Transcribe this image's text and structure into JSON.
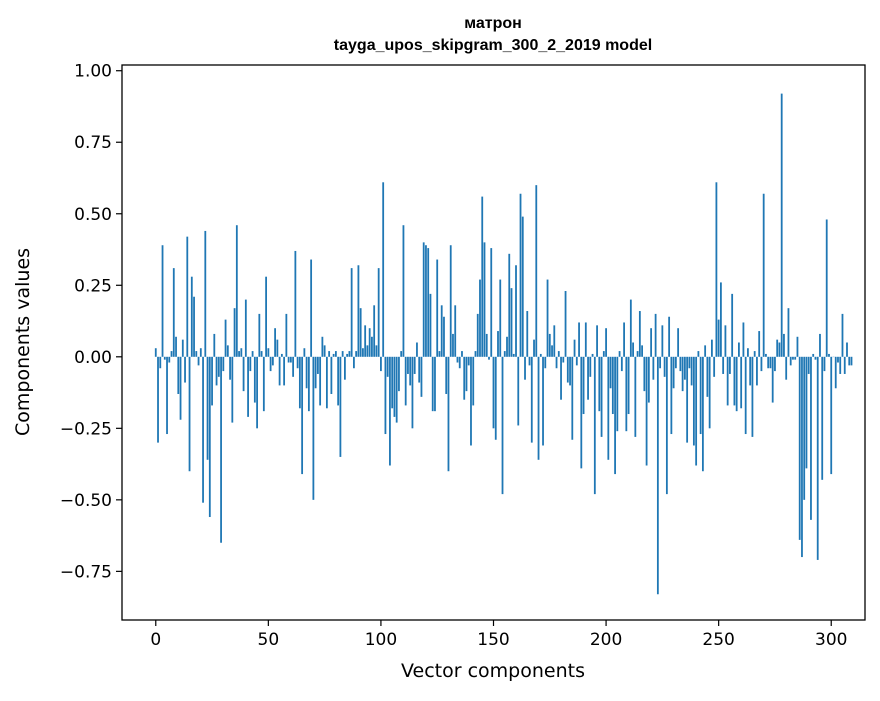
{
  "chart_data": {
    "type": "bar",
    "title": "матрон",
    "subtitle": "tayga_upos_skipgram_300_2_2019 model",
    "xlabel": "Vector components",
    "ylabel": "Components values",
    "xlim": [
      -15,
      315
    ],
    "ylim": [
      -0.92,
      1.02
    ],
    "x_ticks": [
      0,
      50,
      100,
      150,
      200,
      250,
      300
    ],
    "y_ticks": [
      -0.75,
      -0.5,
      -0.25,
      0.0,
      0.25,
      0.5,
      0.75,
      1.0
    ],
    "x_tick_labels": [
      "0",
      "50",
      "100",
      "150",
      "200",
      "250",
      "300"
    ],
    "y_tick_labels": [
      "−0.75",
      "−0.50",
      "−0.25",
      "0.00",
      "0.25",
      "0.50",
      "0.75",
      "1.00"
    ],
    "bar_color": "#1f77b4",
    "grid": false,
    "legend": "none",
    "values": [
      0.03,
      -0.3,
      -0.04,
      0.39,
      -0.01,
      -0.27,
      -0.02,
      0.02,
      0.31,
      0.07,
      -0.13,
      -0.22,
      0.06,
      -0.09,
      0.42,
      -0.4,
      0.28,
      0.21,
      0.02,
      -0.03,
      0.03,
      -0.51,
      0.44,
      -0.36,
      -0.56,
      -0.17,
      0.08,
      -0.1,
      -0.07,
      -0.65,
      -0.05,
      0.13,
      0.04,
      -0.08,
      -0.23,
      0.17,
      0.46,
      0.02,
      0.03,
      -0.12,
      0.2,
      -0.21,
      -0.05,
      0.02,
      -0.16,
      -0.25,
      0.15,
      0.02,
      -0.19,
      0.28,
      0.03,
      -0.05,
      -0.03,
      0.1,
      0.06,
      -0.1,
      0.01,
      -0.1,
      0.15,
      -0.02,
      -0.02,
      -0.07,
      0.37,
      -0.04,
      -0.18,
      -0.41,
      0.03,
      -0.11,
      -0.19,
      0.34,
      -0.5,
      -0.11,
      -0.06,
      -0.17,
      0.07,
      0.04,
      -0.18,
      0.02,
      -0.13,
      0.01,
      0.02,
      -0.17,
      -0.35,
      0.02,
      -0.08,
      0.01,
      0.02,
      0.31,
      -0.04,
      0.02,
      0.32,
      0.17,
      0.03,
      0.11,
      0.04,
      0.1,
      0.07,
      0.18,
      0.04,
      0.31,
      -0.05,
      0.61,
      -0.27,
      -0.07,
      -0.38,
      -0.18,
      -0.21,
      -0.23,
      -0.12,
      0.02,
      0.46,
      -0.17,
      -0.06,
      -0.1,
      -0.25,
      -0.06,
      0.05,
      -0.09,
      -0.14,
      0.4,
      0.39,
      0.38,
      0.22,
      -0.19,
      -0.19,
      0.34,
      0.02,
      0.18,
      0.14,
      -0.13,
      -0.4,
      0.39,
      0.08,
      0.18,
      -0.02,
      -0.04,
      0.02,
      -0.15,
      -0.12,
      -0.03,
      -0.31,
      -0.17,
      0.02,
      0.15,
      0.27,
      0.56,
      0.4,
      0.08,
      -0.01,
      0.38,
      -0.25,
      -0.29,
      0.09,
      0.27,
      -0.48,
      0.02,
      0.07,
      0.36,
      0.24,
      0.01,
      0.32,
      -0.24,
      0.57,
      0.49,
      -0.08,
      0.16,
      -0.03,
      -0.3,
      0.06,
      0.6,
      -0.36,
      0.01,
      -0.31,
      -0.04,
      0.27,
      0.08,
      0.04,
      0.11,
      -0.04,
      0.02,
      -0.15,
      -0.02,
      0.23,
      -0.09,
      -0.1,
      -0.29,
      0.06,
      -0.03,
      0.12,
      -0.39,
      -0.2,
      0.12,
      -0.15,
      -0.07,
      0.01,
      -0.48,
      0.11,
      -0.19,
      -0.28,
      0.02,
      0.1,
      -0.36,
      -0.11,
      -0.2,
      -0.41,
      -0.26,
      0.02,
      -0.05,
      0.12,
      -0.26,
      -0.2,
      0.2,
      0.05,
      -0.28,
      0.02,
      0.16,
      0.04,
      -0.12,
      -0.38,
      -0.16,
      0.1,
      -0.08,
      0.15,
      -0.83,
      -0.04,
      0.11,
      -0.07,
      -0.48,
      0.14,
      -0.27,
      -0.11,
      -0.04,
      0.1,
      -0.05,
      -0.12,
      -0.08,
      -0.3,
      -0.04,
      -0.1,
      -0.31,
      -0.38,
      0.02,
      -0.27,
      -0.4,
      0.04,
      -0.14,
      -0.25,
      0.06,
      -0.07,
      0.61,
      0.13,
      0.26,
      -0.06,
      0.11,
      -0.17,
      -0.06,
      0.22,
      -0.17,
      -0.19,
      0.05,
      -0.18,
      0.12,
      -0.27,
      0.03,
      -0.1,
      -0.28,
      0.02,
      -0.1,
      0.09,
      -0.05,
      0.57,
      0.01,
      -0.04,
      -0.04,
      -0.16,
      -0.05,
      0.06,
      0.05,
      0.92,
      0.08,
      -0.08,
      0.17,
      -0.03,
      -0.01,
      -0.01,
      0.07,
      -0.64,
      -0.7,
      -0.5,
      -0.39,
      -0.06,
      -0.57,
      0.01,
      -0.01,
      -0.71,
      0.08,
      -0.43,
      -0.05,
      0.48,
      0.01,
      -0.41,
      0.0,
      -0.11,
      -0.02,
      -0.06,
      0.15,
      -0.06,
      0.05,
      -0.03,
      -0.03
    ]
  }
}
